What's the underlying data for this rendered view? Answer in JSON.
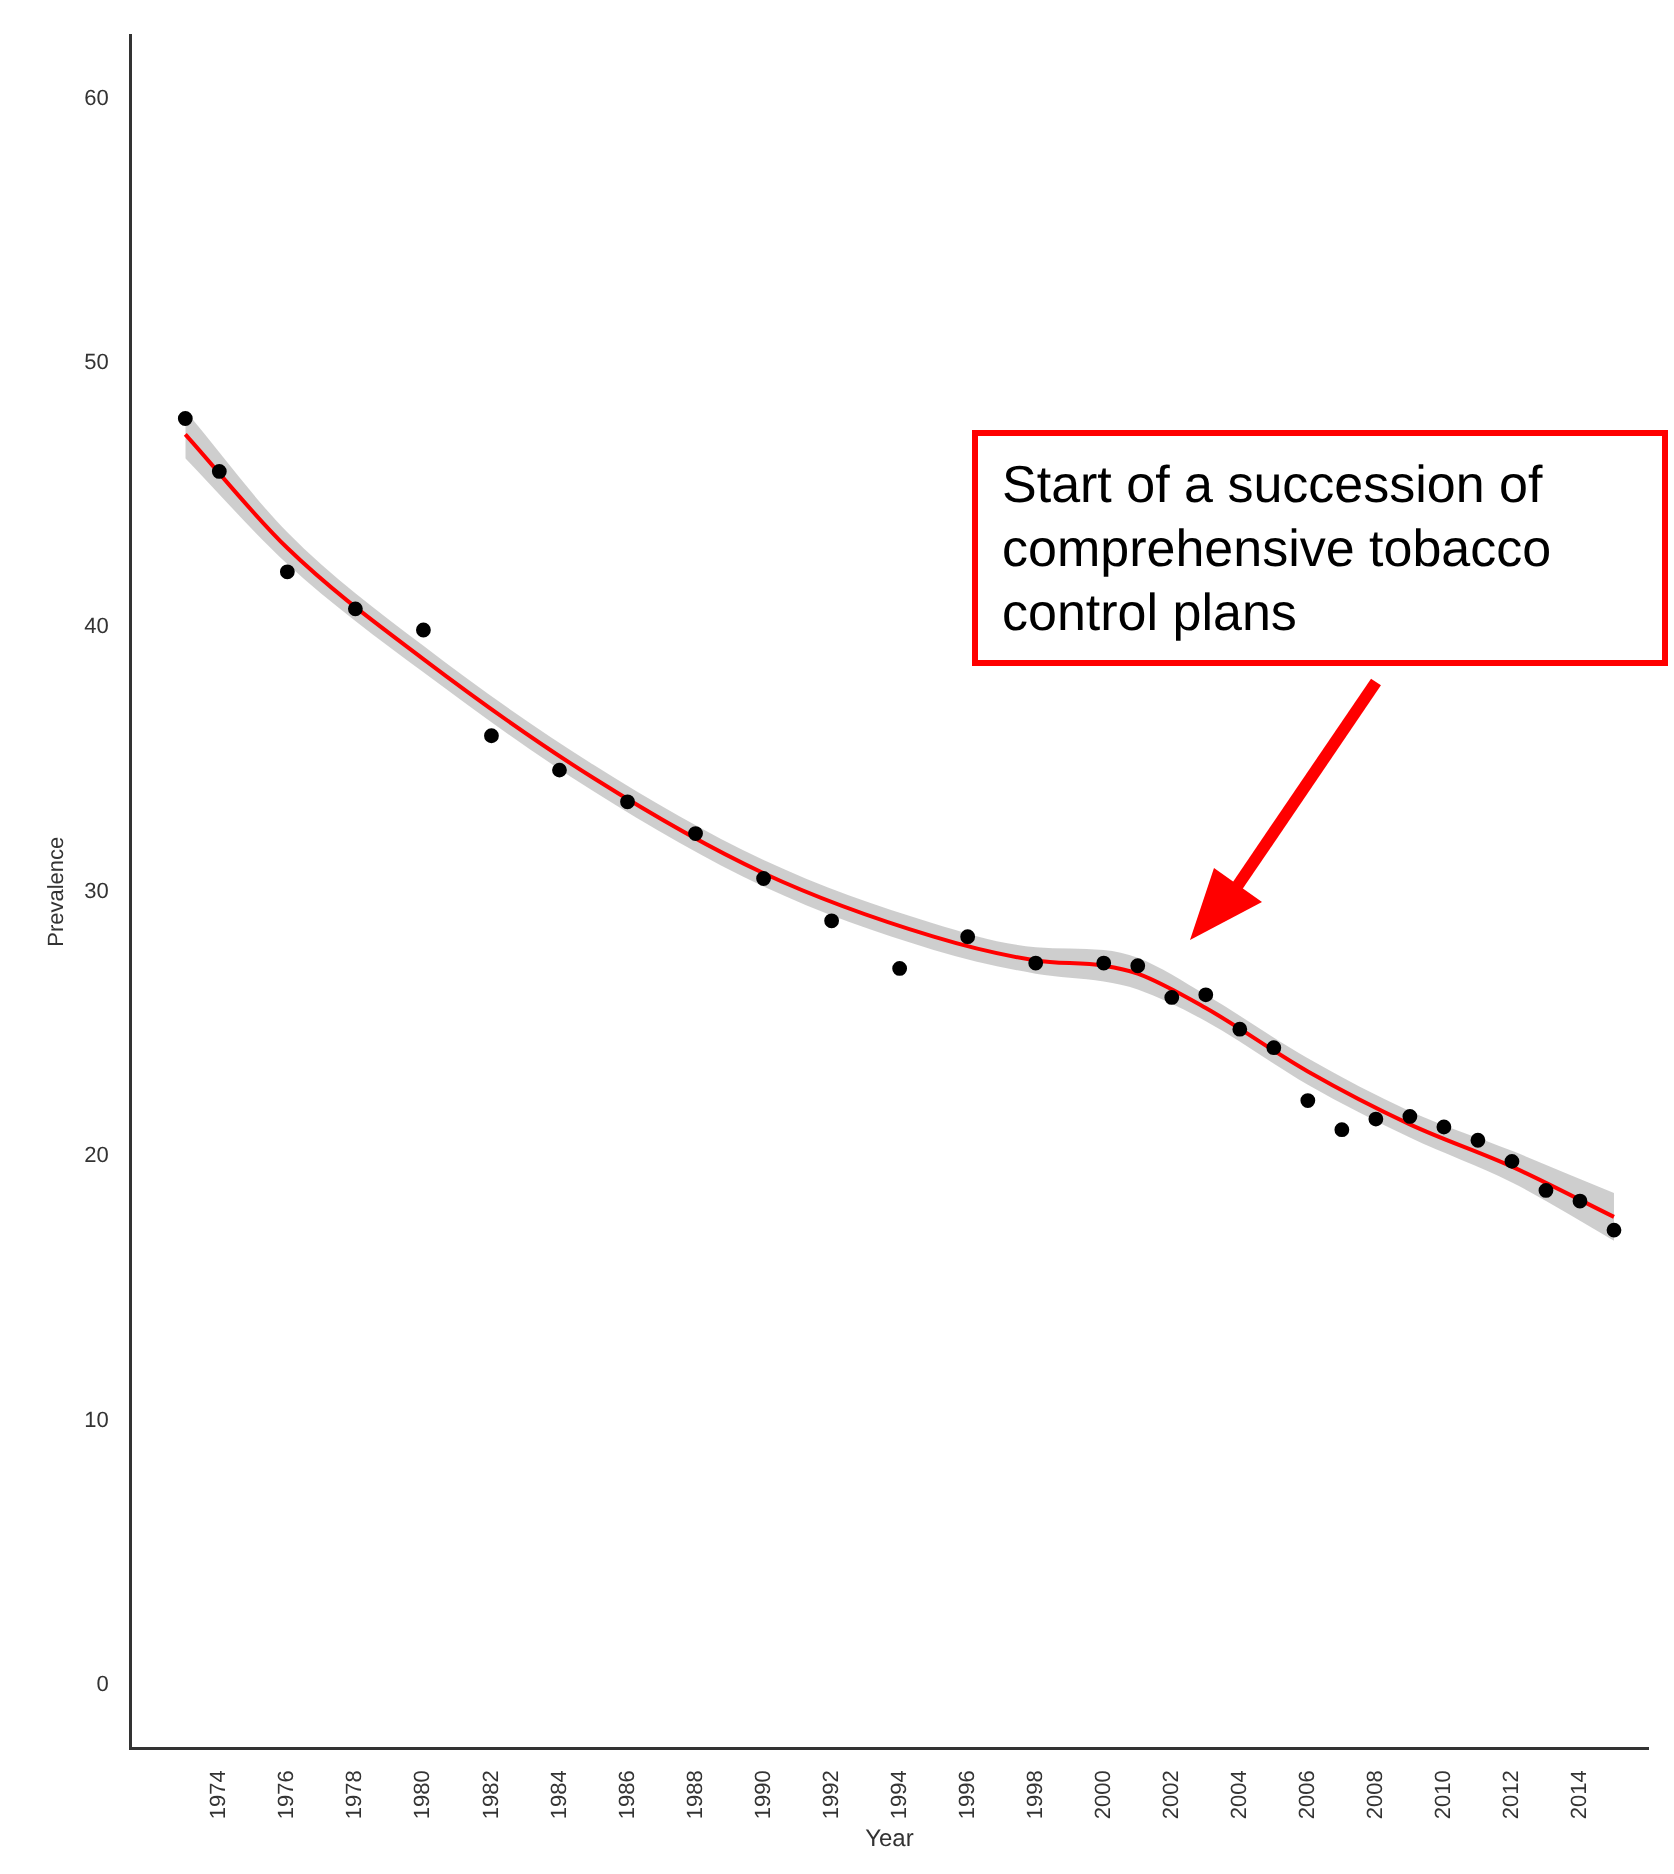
{
  "chart_data": {
    "type": "scatter",
    "xlabel": "Year",
    "ylabel": "Prevalence",
    "xlim": [
      1971.4,
      2016
    ],
    "xticks": [
      1974,
      1976,
      1978,
      1980,
      1982,
      1984,
      1986,
      1988,
      1990,
      1992,
      1994,
      1996,
      1998,
      2000,
      2002,
      2004,
      2006,
      2008,
      2010,
      2012,
      2014
    ],
    "ylim": [
      -2.4,
      62.4
    ],
    "yticks": [
      0,
      10,
      20,
      30,
      40,
      50,
      60
    ],
    "grid": false,
    "legend": false,
    "series": [
      {
        "marker": "circle",
        "color": "#000000",
        "x": [
          1973,
          1974,
          1976,
          1978,
          1980,
          1982,
          1984,
          1986,
          1988,
          1990,
          1992,
          1994,
          1996,
          1998,
          2000,
          2001,
          2002,
          2003,
          2004,
          2005,
          2006,
          2007,
          2008,
          2009,
          2010,
          2011,
          2012,
          2013,
          2014,
          2015
        ],
        "values": [
          47.9,
          45.9,
          42.1,
          40.7,
          39.9,
          35.9,
          34.6,
          33.4,
          32.2,
          30.5,
          28.9,
          27.1,
          28.3,
          27.3,
          27.3,
          27.2,
          26.0,
          26.1,
          24.8,
          24.1,
          22.1,
          21.0,
          21.4,
          21.5,
          21.1,
          20.6,
          19.8,
          18.7,
          18.3,
          17.2
        ]
      },
      {
        "type": "line",
        "color": "#ff0000",
        "x": [
          1973,
          1976,
          1980,
          1985,
          1990,
          1995,
          1998,
          2000,
          2001,
          2003,
          2006,
          2009,
          2012,
          2015
        ],
        "values": [
          47.3,
          43.0,
          38.8,
          34.3,
          30.7,
          28.3,
          27.4,
          27.2,
          26.9,
          25.6,
          23.2,
          21.2,
          19.6,
          17.7
        ],
        "lower": [
          46.4,
          42.4,
          38.3,
          33.8,
          30.2,
          27.8,
          26.9,
          26.6,
          26.3,
          25.1,
          22.7,
          20.7,
          19.0,
          16.8
        ],
        "upper": [
          48.2,
          43.6,
          39.3,
          34.8,
          31.2,
          28.8,
          27.9,
          27.8,
          27.5,
          26.1,
          23.7,
          21.7,
          20.2,
          18.6
        ]
      }
    ],
    "annotations": [
      "Start of a succession of comprehensive tobacco control plans"
    ]
  }
}
